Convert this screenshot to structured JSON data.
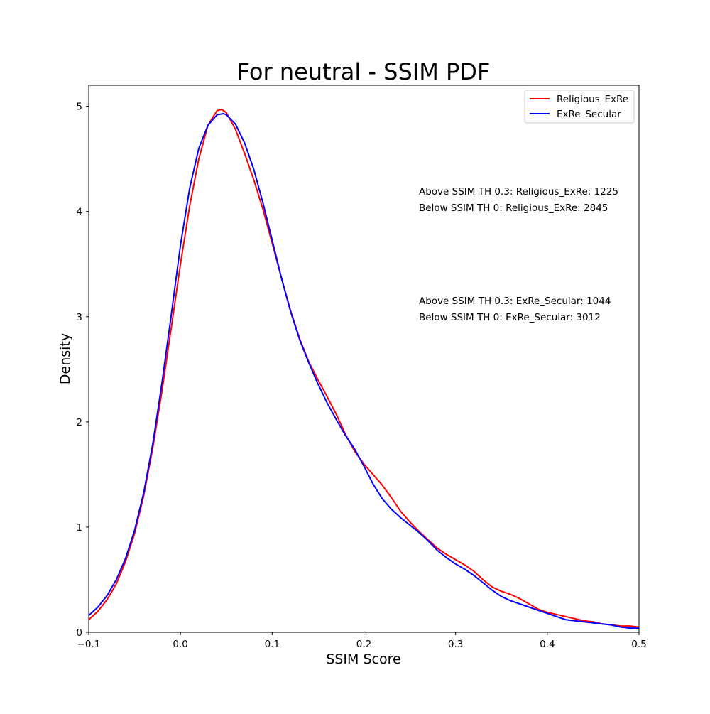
{
  "chart_data": {
    "type": "line",
    "title": "For neutral - SSIM PDF",
    "xlabel": "SSIM Score",
    "ylabel": "Density",
    "xlim": [
      -0.1,
      0.5
    ],
    "ylim": [
      0,
      5.2
    ],
    "xticks": [
      -0.1,
      0.0,
      0.1,
      0.2,
      0.3,
      0.4,
      0.5
    ],
    "xtick_labels": [
      "−0.1",
      "0.0",
      "0.1",
      "0.2",
      "0.3",
      "0.4",
      "0.5"
    ],
    "yticks": [
      0,
      1,
      2,
      3,
      4,
      5
    ],
    "ytick_labels": [
      "0",
      "1",
      "2",
      "3",
      "4",
      "5"
    ],
    "grid": false,
    "legend_position": "top-right",
    "series": [
      {
        "name": "Religious_ExRe",
        "color": "#ff0000",
        "points": [
          [
            -0.1,
            0.12
          ],
          [
            -0.09,
            0.2
          ],
          [
            -0.08,
            0.31
          ],
          [
            -0.07,
            0.46
          ],
          [
            -0.06,
            0.67
          ],
          [
            -0.05,
            0.94
          ],
          [
            -0.04,
            1.3
          ],
          [
            -0.03,
            1.76
          ],
          [
            -0.02,
            2.3
          ],
          [
            -0.01,
            2.9
          ],
          [
            0.0,
            3.5
          ],
          [
            0.01,
            4.05
          ],
          [
            0.02,
            4.5
          ],
          [
            0.03,
            4.82
          ],
          [
            0.04,
            4.96
          ],
          [
            0.045,
            4.97
          ],
          [
            0.05,
            4.94
          ],
          [
            0.06,
            4.78
          ],
          [
            0.07,
            4.55
          ],
          [
            0.08,
            4.3
          ],
          [
            0.09,
            4.02
          ],
          [
            0.1,
            3.7
          ],
          [
            0.11,
            3.37
          ],
          [
            0.12,
            3.06
          ],
          [
            0.13,
            2.79
          ],
          [
            0.14,
            2.57
          ],
          [
            0.15,
            2.4
          ],
          [
            0.16,
            2.24
          ],
          [
            0.17,
            2.07
          ],
          [
            0.18,
            1.88
          ],
          [
            0.19,
            1.72
          ],
          [
            0.2,
            1.6
          ],
          [
            0.21,
            1.5
          ],
          [
            0.22,
            1.4
          ],
          [
            0.23,
            1.28
          ],
          [
            0.24,
            1.15
          ],
          [
            0.25,
            1.05
          ],
          [
            0.26,
            0.96
          ],
          [
            0.27,
            0.88
          ],
          [
            0.28,
            0.8
          ],
          [
            0.29,
            0.74
          ],
          [
            0.3,
            0.69
          ],
          [
            0.31,
            0.64
          ],
          [
            0.32,
            0.58
          ],
          [
            0.33,
            0.5
          ],
          [
            0.34,
            0.43
          ],
          [
            0.35,
            0.39
          ],
          [
            0.36,
            0.36
          ],
          [
            0.37,
            0.32
          ],
          [
            0.38,
            0.27
          ],
          [
            0.39,
            0.22
          ],
          [
            0.4,
            0.19
          ],
          [
            0.41,
            0.17
          ],
          [
            0.42,
            0.15
          ],
          [
            0.43,
            0.13
          ],
          [
            0.44,
            0.11
          ],
          [
            0.45,
            0.1
          ],
          [
            0.46,
            0.08
          ],
          [
            0.47,
            0.07
          ],
          [
            0.48,
            0.06
          ],
          [
            0.49,
            0.06
          ],
          [
            0.5,
            0.05
          ]
        ]
      },
      {
        "name": "ExRe_Secular",
        "color": "#0000ff",
        "points": [
          [
            -0.1,
            0.16
          ],
          [
            -0.09,
            0.24
          ],
          [
            -0.08,
            0.35
          ],
          [
            -0.07,
            0.5
          ],
          [
            -0.06,
            0.7
          ],
          [
            -0.05,
            0.97
          ],
          [
            -0.04,
            1.33
          ],
          [
            -0.03,
            1.8
          ],
          [
            -0.02,
            2.38
          ],
          [
            -0.01,
            3.02
          ],
          [
            0.0,
            3.68
          ],
          [
            0.01,
            4.22
          ],
          [
            0.02,
            4.6
          ],
          [
            0.03,
            4.82
          ],
          [
            0.04,
            4.92
          ],
          [
            0.047,
            4.93
          ],
          [
            0.05,
            4.92
          ],
          [
            0.06,
            4.83
          ],
          [
            0.07,
            4.65
          ],
          [
            0.08,
            4.4
          ],
          [
            0.09,
            4.08
          ],
          [
            0.1,
            3.73
          ],
          [
            0.11,
            3.37
          ],
          [
            0.12,
            3.05
          ],
          [
            0.13,
            2.78
          ],
          [
            0.14,
            2.56
          ],
          [
            0.15,
            2.36
          ],
          [
            0.16,
            2.18
          ],
          [
            0.17,
            2.02
          ],
          [
            0.18,
            1.87
          ],
          [
            0.19,
            1.74
          ],
          [
            0.2,
            1.58
          ],
          [
            0.21,
            1.41
          ],
          [
            0.22,
            1.27
          ],
          [
            0.23,
            1.17
          ],
          [
            0.24,
            1.09
          ],
          [
            0.25,
            1.02
          ],
          [
            0.26,
            0.95
          ],
          [
            0.27,
            0.87
          ],
          [
            0.28,
            0.78
          ],
          [
            0.29,
            0.71
          ],
          [
            0.3,
            0.65
          ],
          [
            0.31,
            0.6
          ],
          [
            0.32,
            0.54
          ],
          [
            0.33,
            0.47
          ],
          [
            0.34,
            0.4
          ],
          [
            0.35,
            0.34
          ],
          [
            0.36,
            0.3
          ],
          [
            0.37,
            0.27
          ],
          [
            0.38,
            0.24
          ],
          [
            0.39,
            0.21
          ],
          [
            0.4,
            0.18
          ],
          [
            0.41,
            0.15
          ],
          [
            0.42,
            0.12
          ],
          [
            0.43,
            0.11
          ],
          [
            0.44,
            0.1
          ],
          [
            0.45,
            0.09
          ],
          [
            0.46,
            0.08
          ],
          [
            0.47,
            0.07
          ],
          [
            0.48,
            0.05
          ],
          [
            0.49,
            0.04
          ],
          [
            0.5,
            0.04
          ]
        ]
      }
    ],
    "annotations": [
      "Above SSIM TH 0.3: Religious_ExRe: 1225",
      "Below SSIM TH 0: Religious_ExRe: 2845",
      "Above SSIM TH 0.3: ExRe_Secular: 1044",
      "Below SSIM TH 0: ExRe_Secular: 3012"
    ]
  }
}
